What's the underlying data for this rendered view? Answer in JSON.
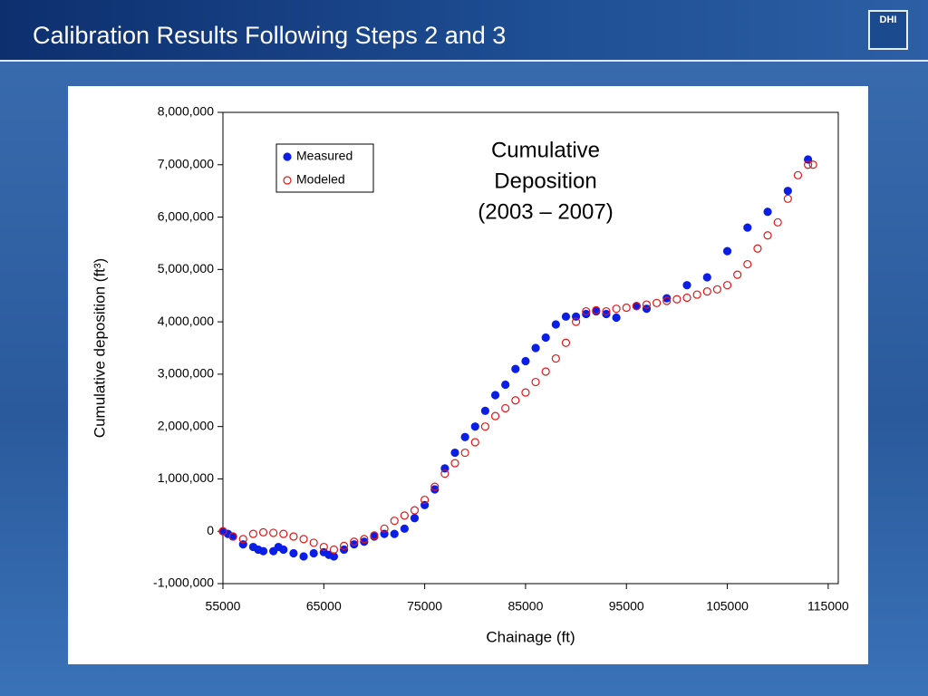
{
  "slide": {
    "title": "Calibration Results Following Steps 2 and 3",
    "logo": "DHI"
  },
  "chart_data": {
    "type": "scatter",
    "annotation": [
      "Cumulative",
      "Deposition",
      "(2003 – 2007)"
    ],
    "x_label": "Chainage (ft)",
    "y_label": "Cumulative deposition (ft³)",
    "xlim": [
      55000,
      116000
    ],
    "xticks": [
      55000,
      65000,
      75000,
      85000,
      95000,
      105000,
      115000
    ],
    "ylim": [
      -1000000,
      8000000
    ],
    "yticks": [
      {
        "value": -1000000,
        "label": "-1,000,000"
      },
      0,
      {
        "value": 1000000,
        "label": "1,000,000"
      },
      {
        "value": 2000000,
        "label": "2,000,000"
      },
      {
        "value": 3000000,
        "label": "3,000,000"
      },
      {
        "value": 4000000,
        "label": "4,000,000"
      },
      {
        "value": 5000000,
        "label": "5,000,000"
      },
      {
        "value": 6000000,
        "label": "6,000,000"
      },
      {
        "value": 7000000,
        "label": "7,000,000"
      },
      {
        "value": 8000000,
        "label": "8,000,000"
      }
    ],
    "legend": "upper left",
    "series": [
      {
        "name": "Measured",
        "color": "#0a1ee6",
        "marker": "filled",
        "x": [
          55000,
          55500,
          56000,
          57000,
          58000,
          58500,
          59000,
          60000,
          60500,
          61000,
          62000,
          63000,
          64000,
          65000,
          65500,
          66000,
          67000,
          68000,
          69000,
          70000,
          71000,
          72000,
          73000,
          74000,
          75000,
          76000,
          77000,
          78000,
          79000,
          80000,
          81000,
          82000,
          83000,
          84000,
          85000,
          86000,
          87000,
          88000,
          89000,
          90000,
          91000,
          92000,
          93000,
          94000,
          96000,
          97000,
          99000,
          101000,
          103000,
          105000,
          107000,
          109000,
          111000,
          113000
        ],
        "values": [
          0,
          -50000,
          -100000,
          -250000,
          -300000,
          -350000,
          -380000,
          -380000,
          -300000,
          -350000,
          -420000,
          -480000,
          -420000,
          -400000,
          -450000,
          -480000,
          -350000,
          -250000,
          -200000,
          -100000,
          -50000,
          -50000,
          50000,
          250000,
          500000,
          800000,
          1200000,
          1500000,
          1800000,
          2000000,
          2300000,
          2600000,
          2800000,
          3100000,
          3250000,
          3500000,
          3700000,
          3950000,
          4100000,
          4100000,
          4150000,
          4200000,
          4150000,
          4080000,
          4300000,
          4250000,
          4450000,
          4700000,
          4850000,
          5350000,
          5800000,
          6100000,
          6500000,
          7100000
        ]
      },
      {
        "name": "Modeled",
        "color": "#e61414",
        "marker": "open",
        "x": [
          55000,
          56000,
          57000,
          58000,
          59000,
          60000,
          61000,
          62000,
          63000,
          64000,
          65000,
          66000,
          67000,
          68000,
          69000,
          70000,
          71000,
          72000,
          73000,
          74000,
          75000,
          76000,
          77000,
          78000,
          79000,
          80000,
          81000,
          82000,
          83000,
          84000,
          85000,
          86000,
          87000,
          88000,
          89000,
          90000,
          91000,
          92000,
          93000,
          94000,
          95000,
          96000,
          97000,
          98000,
          99000,
          100000,
          101000,
          102000,
          103000,
          104000,
          105000,
          106000,
          107000,
          108000,
          109000,
          110000,
          111000,
          112000,
          113000,
          113500
        ],
        "values": [
          0,
          -100000,
          -150000,
          -50000,
          -20000,
          -30000,
          -50000,
          -100000,
          -150000,
          -220000,
          -300000,
          -350000,
          -280000,
          -200000,
          -150000,
          -80000,
          50000,
          200000,
          300000,
          400000,
          600000,
          850000,
          1100000,
          1300000,
          1500000,
          1700000,
          2000000,
          2200000,
          2350000,
          2500000,
          2650000,
          2850000,
          3050000,
          3300000,
          3600000,
          4000000,
          4200000,
          4220000,
          4200000,
          4250000,
          4270000,
          4300000,
          4330000,
          4360000,
          4400000,
          4430000,
          4460000,
          4520000,
          4580000,
          4620000,
          4700000,
          4900000,
          5100000,
          5400000,
          5650000,
          5900000,
          6350000,
          6800000,
          7000000,
          7000000
        ]
      }
    ]
  }
}
